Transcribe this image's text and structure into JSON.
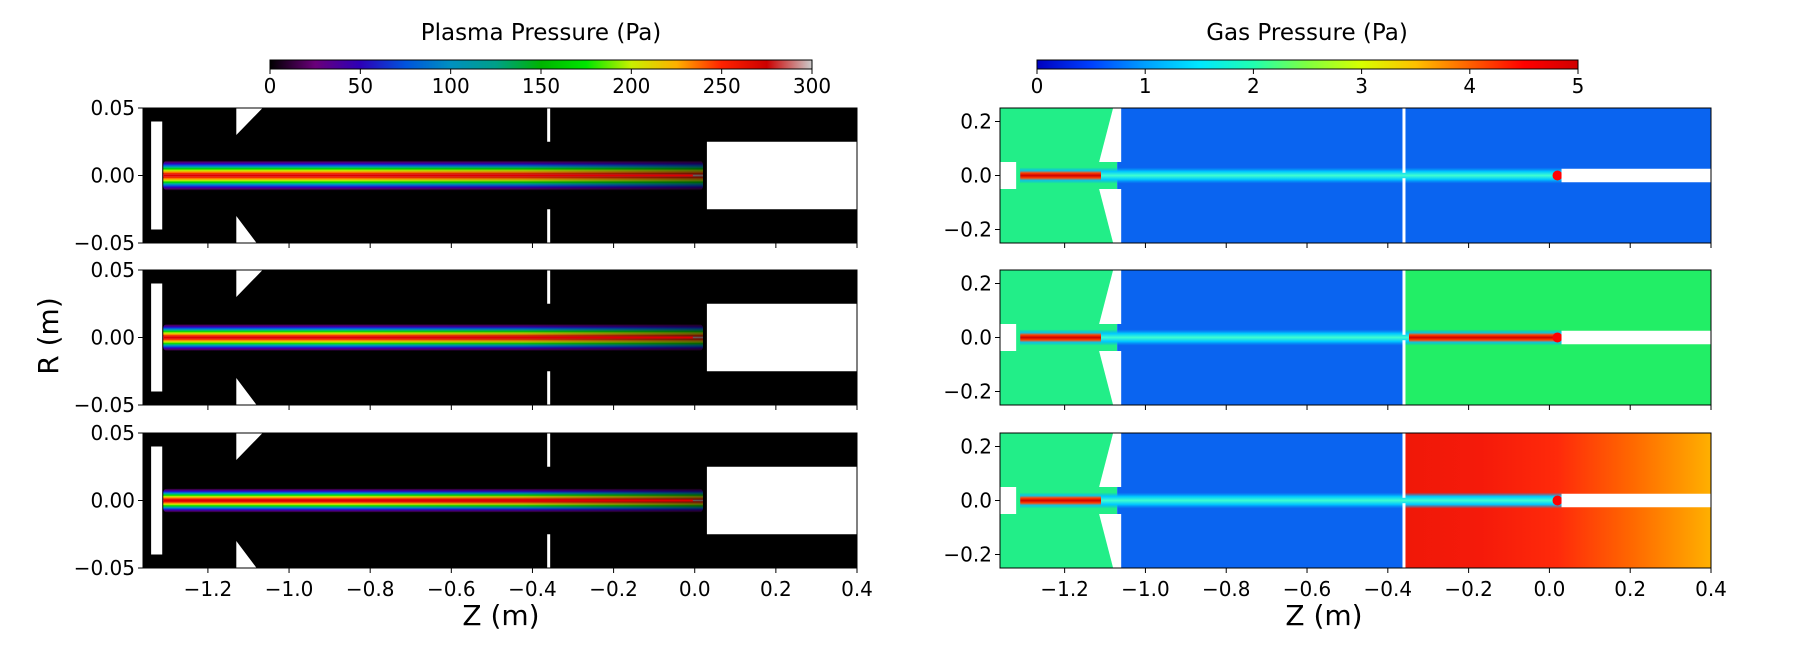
{
  "chart_data": {
    "type": "heatmap",
    "shared": {
      "xlabel": "Z (m)",
      "ylabel": "R (m)",
      "xlim": [
        -1.36,
        0.4
      ],
      "xticks": [
        -1.2,
        -1.0,
        -0.8,
        -0.6,
        -0.4,
        -0.2,
        0.0,
        0.2,
        0.4
      ]
    },
    "columns": [
      {
        "id": "plasma",
        "title": "Plasma Pressure (Pa)",
        "colorbar": {
          "range": [
            0,
            300
          ],
          "ticks": [
            0,
            50,
            100,
            150,
            200,
            250,
            300
          ],
          "tick_labels": [
            "0",
            "50",
            "100",
            "150",
            "200",
            "250",
            "300"
          ],
          "colormap": "nipy_spectral",
          "stops": [
            "#000000",
            "#6a007a",
            "#2d00b8",
            "#0054dd",
            "#0090c0",
            "#00a088",
            "#00b400",
            "#00e600",
            "#c8f000",
            "#ffb000",
            "#ff2200",
            "#cc0000",
            "#cccccc"
          ]
        },
        "ylim": [
          -0.05,
          0.05
        ],
        "yticks": [
          -0.05,
          0.0,
          0.05
        ],
        "ytick_labels": [
          "−0.05",
          "0.00",
          "0.05"
        ],
        "xtick_labels": [
          "−1.2",
          "−1.0",
          "−0.8",
          "−0.6",
          "−0.4",
          "−0.2",
          "0.0",
          "0.2",
          "0.4"
        ],
        "panels": [
          {
            "row": 1,
            "background": "#000000",
            "jet_start_z": -1.31,
            "jet_end_z": 0.02,
            "core_value": 280,
            "body_value": 150
          },
          {
            "row": 2,
            "background": "#000000",
            "jet_start_z": -1.31,
            "jet_end_z": 0.02,
            "core_value": 250,
            "body_value": 140
          },
          {
            "row": 3,
            "background": "#000000",
            "jet_start_z": -1.31,
            "jet_end_z": 0.02,
            "core_value": 230,
            "body_value": 120
          }
        ]
      },
      {
        "id": "gas",
        "title": "Gas Pressure (Pa)",
        "colorbar": {
          "range": [
            0,
            5
          ],
          "ticks": [
            0,
            1,
            2,
            3,
            4,
            5
          ],
          "tick_labels": [
            "0",
            "1",
            "2",
            "3",
            "4",
            "5"
          ],
          "colormap": "jet",
          "stops": [
            "#0000bf",
            "#0040ff",
            "#00a0ff",
            "#00e8ff",
            "#20ffb0",
            "#80ff40",
            "#d8ff00",
            "#ffc000",
            "#ff6000",
            "#ff0000",
            "#d00000"
          ]
        },
        "ylim": [
          -0.25,
          0.25
        ],
        "yticks": [
          -0.2,
          0.0,
          0.2
        ],
        "ytick_labels": [
          "−0.2",
          "0.0",
          "0.2"
        ],
        "xtick_labels": [
          "−1.2",
          "−1.0",
          "−0.8",
          "−0.6",
          "−0.4",
          "−0.2",
          "0.0",
          "0.2",
          "0.4"
        ],
        "panels": [
          {
            "row": 1,
            "left_region": "#22ee88",
            "middle_region": "#0a64f0",
            "right_region": "#0a64f0"
          },
          {
            "row": 2,
            "left_region": "#22ee88",
            "middle_region": "#0a64f0",
            "right_region": "#22ee66"
          },
          {
            "row": 3,
            "left_region": "#22ee88",
            "middle_region": "#0a64f0",
            "right_region": "#f51a0a"
          }
        ]
      }
    ]
  }
}
